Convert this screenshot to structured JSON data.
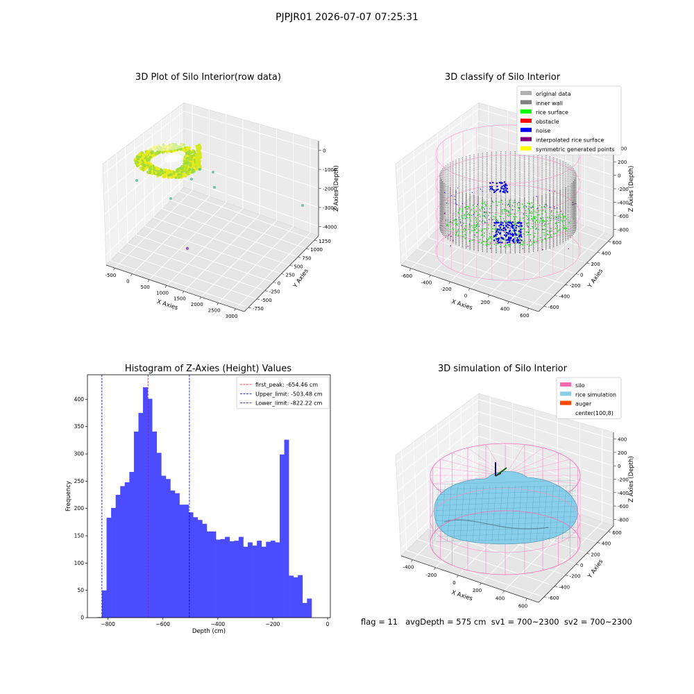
{
  "header": {
    "suptitle": "PJPJR01 2026-07-07 07:25:31"
  },
  "footer": {
    "status": "flag = 11   avgDepth = 575 cm  sv1 = 700~2300  sv2 = 700~2300"
  },
  "chart_data": [
    {
      "type": "scatter",
      "title": "3D Plot of Silo Interior(row data)",
      "xlabel": "X Axies",
      "ylabel": "Y Axies",
      "zlabel": "Z Axies (Depth)",
      "x_ticks": [
        "-500",
        "0",
        "500",
        "1000",
        "1500",
        "2000",
        "2500",
        "3000"
      ],
      "y_ticks": [
        "-750",
        "-500",
        "-250",
        "0",
        "250",
        "500",
        "750",
        "1000",
        "1250"
      ],
      "z_ticks": [
        "0",
        "-1000",
        "-2000",
        "-3000",
        "-4000"
      ],
      "colors": {
        "main": "#c8e020",
        "outlier": "#4fb99a",
        "far": "#9b59b6"
      }
    },
    {
      "type": "scatter",
      "title": "3D classify of Silo Interior",
      "xlabel": "X Axies",
      "ylabel": "Y Axies",
      "zlabel": "Z Axies (Depth)",
      "x_ticks": [
        "-600",
        "-400",
        "-200",
        "0",
        "200",
        "400",
        "600"
      ],
      "y_ticks": [
        "-600",
        "-400",
        "-200",
        "0",
        "200",
        "400",
        "600"
      ],
      "z_ticks": [
        "400",
        "200",
        "0",
        "-200",
        "-400",
        "-600",
        "-800"
      ],
      "legend": [
        {
          "label": "original data",
          "color": "#b0b0b0"
        },
        {
          "label": "inner wall",
          "color": "#808080"
        },
        {
          "label": "rice surface",
          "color": "#00ff00"
        },
        {
          "label": "obstacle",
          "color": "#ff0000"
        },
        {
          "label": "noise",
          "color": "#0000ff"
        },
        {
          "label": "interpolated rice surface",
          "color": "#800080"
        },
        {
          "label": "symmetric generated points",
          "color": "#ffff00"
        }
      ],
      "legend_position": "upper right"
    },
    {
      "type": "bar",
      "title": "Histogram of Z-Axies (Height) Values",
      "xlabel": "Depth (cm)",
      "ylabel": "Frequency",
      "xlim": [
        -875,
        10
      ],
      "ylim": [
        0,
        445
      ],
      "x_ticks": [
        -800,
        -600,
        -400,
        -200,
        0
      ],
      "y_ticks": [
        0,
        50,
        100,
        150,
        200,
        250,
        300,
        350,
        400
      ],
      "bin_start": -822,
      "bin_width": 16.6,
      "values": [
        50,
        183,
        201,
        225,
        241,
        248,
        267,
        341,
        375,
        422,
        401,
        341,
        302,
        260,
        254,
        233,
        228,
        207,
        207,
        193,
        184,
        179,
        172,
        158,
        158,
        143,
        144,
        148,
        140,
        141,
        148,
        130,
        138,
        132,
        141,
        130,
        139,
        141,
        138,
        299,
        326,
        77,
        74,
        78,
        27,
        35
      ],
      "extra_bars": [
        {
          "x0": -838.6,
          "width": 16.6,
          "value": 1
        }
      ],
      "lines": [
        {
          "label": "first_peak: -654.46 cm",
          "x": -654.46,
          "color": "#ff0000"
        },
        {
          "label": "Upper_limit: -503.48 cm",
          "x": -503.48,
          "color": "#0000aa"
        },
        {
          "label": "Lower_limit: -822.22 cm",
          "x": -822.22,
          "color": "#0000aa"
        }
      ],
      "bar_color": "#4b4bff",
      "legend_position": "upper right"
    },
    {
      "type": "area",
      "title": "3D simulation of Silo Interior",
      "xlabel": "X Axies",
      "ylabel": "Y Axies",
      "zlabel": "Z Axies (Depth)",
      "x_ticks": [
        "-400",
        "-200",
        "0",
        "200",
        "400",
        "600"
      ],
      "y_ticks": [
        "-600",
        "-400",
        "-200",
        "0",
        "200",
        "400",
        "600"
      ],
      "z_ticks": [
        "400",
        "200",
        "0",
        "-200",
        "-400",
        "-600",
        "-800"
      ],
      "legend": [
        {
          "label": "silo",
          "color": "#ff69b4"
        },
        {
          "label": "rice simulation",
          "color": "#87ceeb"
        },
        {
          "label": "auger",
          "color": "#ff4500"
        },
        {
          "label": "center(100,8)",
          "color": ""
        }
      ],
      "legend_position": "upper right"
    }
  ]
}
